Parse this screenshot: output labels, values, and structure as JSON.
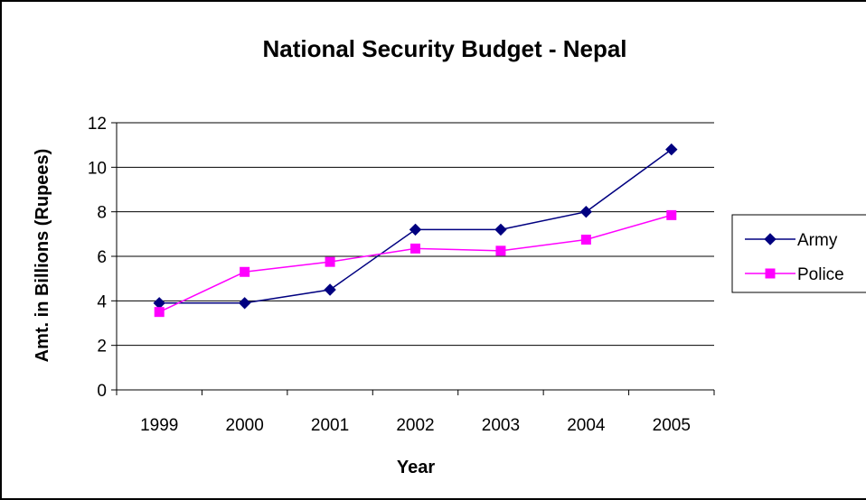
{
  "chart_data": {
    "type": "line",
    "title": "National Security Budget - Nepal",
    "xlabel": "Year",
    "ylabel": "Amt. in Billions (Rupees)",
    "categories": [
      "1999",
      "2000",
      "2001",
      "2002",
      "2003",
      "2004",
      "2005"
    ],
    "ylim": [
      0,
      12
    ],
    "yticks": [
      0,
      2,
      4,
      6,
      8,
      10,
      12
    ],
    "grid": "horizontal",
    "legend": "right",
    "series": [
      {
        "name": "Army",
        "color": "#000080",
        "marker": "diamond",
        "values": [
          3.9,
          3.9,
          4.5,
          7.2,
          7.2,
          8.0,
          10.8
        ]
      },
      {
        "name": "Police",
        "color": "#FF00FF",
        "marker": "square",
        "values": [
          3.5,
          5.3,
          5.75,
          6.35,
          6.25,
          6.75,
          7.85
        ]
      }
    ]
  }
}
